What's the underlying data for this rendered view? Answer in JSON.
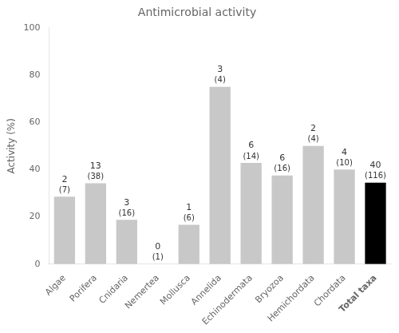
{
  "chart_data": {
    "type": "bar",
    "title": "Antimicrobial activity",
    "ylabel": "Activity (%)",
    "categories": [
      "Algae",
      "Porifera",
      "Cnidaria",
      "Nemertea",
      "Mollusca",
      "Annelida",
      "Echinodermata",
      "Bryozoa",
      "Hemichordata",
      "Chordata",
      "Total taxa"
    ],
    "values": [
      28.57,
      34.21,
      18.75,
      0.0,
      16.67,
      75.0,
      42.86,
      37.5,
      50.0,
      40.0,
      34.48
    ],
    "active_taxa": [
      2,
      13,
      3,
      0,
      1,
      3,
      6,
      6,
      2,
      4,
      40
    ],
    "total_taxa": [
      {
        "value": 7,
        "label": "(7)"
      },
      {
        "value": 38,
        "label": "(38)"
      },
      {
        "value": 16,
        "label": "(16)"
      },
      {
        "value": 1,
        "label": "(1)"
      },
      {
        "value": 6,
        "label": "(6)"
      },
      {
        "value": 4,
        "label": "(4)"
      },
      {
        "value": 14,
        "label": "(14)"
      },
      {
        "value": 16,
        "label": "(16)"
      },
      {
        "value": 4,
        "label": "(4)"
      },
      {
        "value": 10,
        "label": "(10)"
      },
      {
        "value": 116,
        "label": "(116)"
      }
    ],
    "colors": [
      "#c8c8c8",
      "#c8c8c8",
      "#c8c8c8",
      "#c8c8c8",
      "#c8c8c8",
      "#c8c8c8",
      "#c8c8c8",
      "#c8c8c8",
      "#c8c8c8",
      "#c8c8c8",
      "#000000"
    ],
    "ylim": [
      0,
      100
    ],
    "yticks": [
      0,
      20,
      40,
      60,
      80,
      100
    ],
    "grid": false
  }
}
